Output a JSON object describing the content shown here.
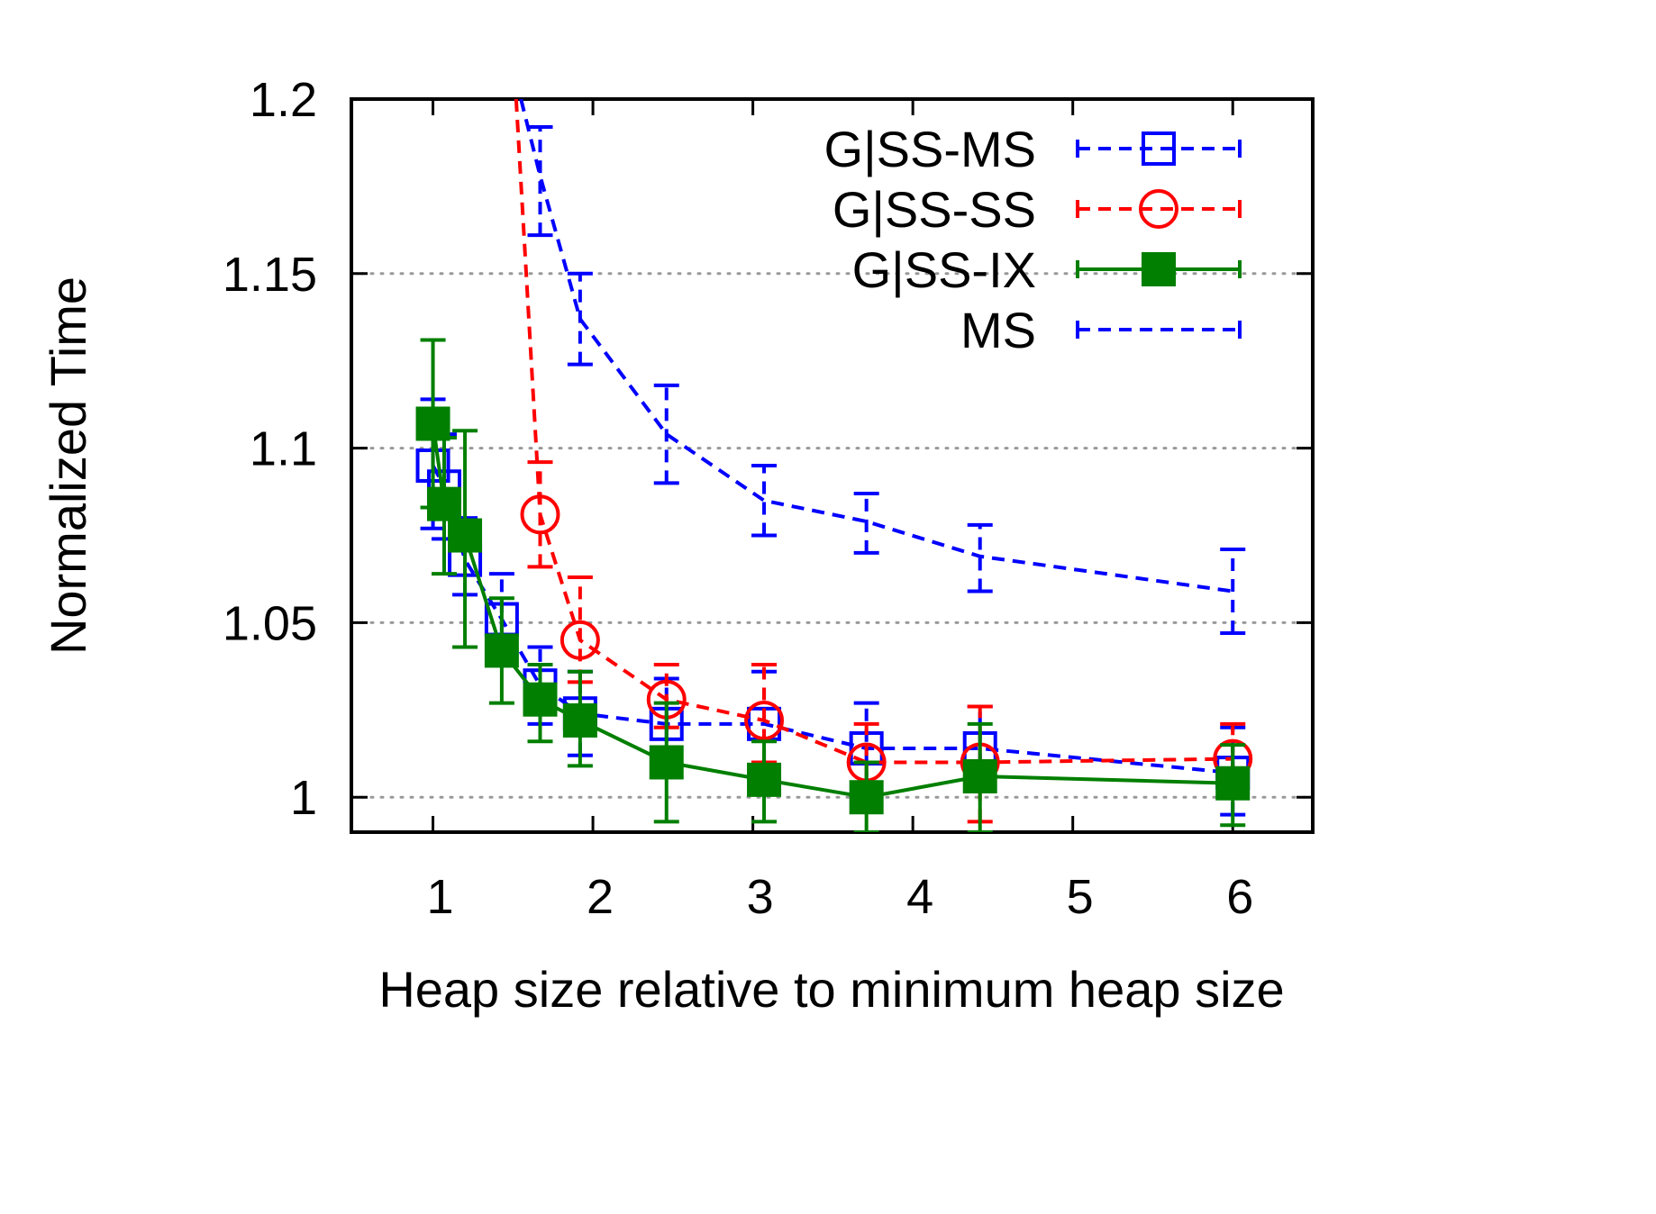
{
  "chart_data": {
    "type": "line",
    "title": "",
    "xlabel": "Heap size relative to minimum heap size",
    "ylabel": "Normalized Time",
    "xlim": [
      0.49,
      6.5
    ],
    "ylim": [
      0.99,
      1.2
    ],
    "xticks": [
      1,
      2,
      3,
      4,
      5,
      6
    ],
    "xtick_labels": [
      "1",
      "2",
      "3",
      "4",
      "5",
      "6"
    ],
    "yticks": [
      1.0,
      1.05,
      1.1,
      1.15,
      1.2
    ],
    "ytick_labels": [
      "1",
      "1.05",
      "1.1",
      "1.15",
      "1.2"
    ],
    "grid": "horizontal dotted",
    "legend_position": "top-right",
    "series": [
      {
        "name": "G|SS-MS",
        "color": "#0000ff",
        "line": "dashed",
        "marker": "open-square",
        "x": [
          1.0,
          1.07,
          1.2,
          1.43,
          1.67,
          1.92,
          2.46,
          3.07,
          3.71,
          4.42,
          6.0
        ],
        "y": [
          1.095,
          1.089,
          1.068,
          1.051,
          1.032,
          1.024,
          1.021,
          1.021,
          1.014,
          1.014,
          1.007
        ],
        "err_low": [
          1.077,
          1.074,
          1.058,
          1.041,
          1.021,
          1.012,
          1.01,
          1.01,
          1.004,
          1.003,
          0.995
        ],
        "err_high": [
          1.114,
          1.104,
          1.08,
          1.064,
          1.043,
          1.036,
          1.034,
          1.036,
          1.027,
          1.026,
          1.02
        ]
      },
      {
        "name": "G|SS-SS",
        "color": "#ff0000",
        "line": "dashed",
        "marker": "open-circle",
        "x": [
          1.52,
          1.67,
          1.92,
          2.46,
          3.07,
          3.71,
          4.42,
          6.0
        ],
        "y": [
          1.2,
          1.081,
          1.045,
          1.028,
          1.022,
          1.01,
          1.01,
          1.011
        ],
        "err_low": [
          null,
          1.066,
          1.033,
          1.02,
          1.01,
          1.0,
          0.993,
          1.0
        ],
        "err_high": [
          null,
          1.096,
          1.063,
          1.038,
          1.038,
          1.021,
          1.026,
          1.021
        ],
        "note": "first point is off-chart above 1.2; line enters from top"
      },
      {
        "name": "G|SS-IX",
        "color": "#007f00",
        "line": "solid",
        "marker": "filled-square",
        "x": [
          1.0,
          1.07,
          1.2,
          1.43,
          1.67,
          1.92,
          2.46,
          3.07,
          3.71,
          4.42,
          6.0
        ],
        "y": [
          1.107,
          1.084,
          1.075,
          1.042,
          1.028,
          1.022,
          1.01,
          1.005,
          1.0,
          1.006,
          1.004
        ],
        "err_low": [
          1.083,
          1.064,
          1.043,
          1.027,
          1.016,
          1.009,
          0.993,
          0.993,
          0.99,
          0.99,
          0.992
        ],
        "err_high": [
          1.131,
          1.103,
          1.105,
          1.057,
          1.038,
          1.036,
          1.027,
          1.016,
          1.01,
          1.021,
          1.015
        ]
      },
      {
        "name": "MS",
        "color": "#0000ff",
        "line": "dashed",
        "marker": "none",
        "x": [
          1.55,
          1.67,
          1.92,
          2.46,
          3.07,
          3.71,
          4.42,
          6.0
        ],
        "y": [
          1.2,
          1.178,
          1.137,
          1.104,
          1.085,
          1.079,
          1.069,
          1.059
        ],
        "err_low": [
          null,
          1.161,
          1.124,
          1.09,
          1.075,
          1.07,
          1.059,
          1.047
        ],
        "err_high": [
          null,
          1.192,
          1.15,
          1.118,
          1.095,
          1.087,
          1.078,
          1.071
        ],
        "note": "first point is off-chart above 1.2; line enters from top"
      }
    ]
  }
}
